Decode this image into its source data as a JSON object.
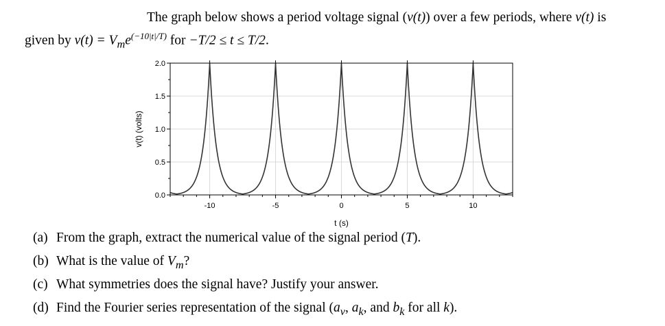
{
  "intro": {
    "line1_pre": "The graph below shows a period voltage signal (",
    "line1_v": "v(t)",
    "line1_mid": ") over a few periods, where ",
    "line1_v2": "v(t)",
    "line1_post": " is",
    "line2_pre": "given by ",
    "line2_eq": "v(t) = V",
    "line2_sub": "m",
    "line2_e": "e",
    "line2_exp": "(−10|t|/T)",
    "line2_mid": " for ",
    "line2_range": "−T/2 ≤ t ≤ T/2",
    "line2_post": "."
  },
  "chart_data": {
    "type": "line",
    "xlabel": "t (s)",
    "ylabel": "v(t) (volts)",
    "xlim": [
      -13,
      13
    ],
    "ylim": [
      0,
      2.0
    ],
    "xticks": [
      -10,
      -5,
      0,
      5,
      10
    ],
    "xtick_labels": [
      "-10",
      "-5",
      "0",
      "5",
      "10"
    ],
    "yticks": [
      0.0,
      0.5,
      1.0,
      1.5,
      2.0
    ],
    "ytick_labels": [
      "0.0",
      "0.5",
      "1.0",
      "1.5",
      "2.0"
    ],
    "grid": true,
    "period": 5,
    "peak_value": 2.0,
    "peaks_t": [
      -10,
      -5,
      0,
      5,
      10
    ],
    "series": [
      {
        "formula": "v(t) = 2 exp(-10|t - 5k|/5)",
        "x": [
          -13,
          -12.5,
          -12,
          -11.5,
          -11,
          -10.5,
          -10,
          -9.5,
          -9,
          -8.5,
          -8,
          -7.5,
          -7,
          -6.5,
          -6,
          -5.5,
          -5,
          -4.5,
          -4,
          -3.5,
          -3,
          -2.5,
          -2,
          -1.5,
          -1,
          -0.5,
          0,
          0.5,
          1,
          1.5,
          2,
          2.5,
          3,
          3.5,
          4,
          4.5,
          5,
          5.5,
          6,
          6.5,
          7,
          7.5,
          8,
          8.5,
          9,
          9.5,
          10,
          10.5,
          11,
          11.5,
          12,
          12.5,
          13
        ],
        "y": [
          0.005,
          0.013,
          0.037,
          0.1,
          0.271,
          0.736,
          2.0,
          0.736,
          0.271,
          0.1,
          0.037,
          0.013,
          0.037,
          0.1,
          0.271,
          0.736,
          2.0,
          0.736,
          0.271,
          0.1,
          0.037,
          0.013,
          0.037,
          0.1,
          0.271,
          0.736,
          2.0,
          0.736,
          0.271,
          0.1,
          0.037,
          0.013,
          0.037,
          0.1,
          0.271,
          0.736,
          2.0,
          0.736,
          0.271,
          0.1,
          0.037,
          0.013,
          0.037,
          0.1,
          0.271,
          0.736,
          2.0,
          0.736,
          0.271,
          0.1,
          0.037,
          0.013,
          0.005
        ]
      }
    ],
    "colors": {
      "line": "#333333",
      "grid": "#d9d9d9",
      "axis": "#000000"
    }
  },
  "questions": [
    {
      "tag": "(a)",
      "parts": [
        {
          "t": "From the graph, extract the numerical value of the signal period ("
        },
        {
          "t": "T",
          "m": true
        },
        {
          "t": ")."
        }
      ]
    },
    {
      "tag": "(b)",
      "parts": [
        {
          "t": "What is the value of "
        },
        {
          "t": "V",
          "m": true
        },
        {
          "t": "m",
          "m": true,
          "sub": true
        },
        {
          "t": "?"
        }
      ]
    },
    {
      "tag": "(c)",
      "parts": [
        {
          "t": "What symmetries does the signal have? Justify your answer."
        }
      ]
    },
    {
      "tag": "(d)",
      "parts": [
        {
          "t": "Find the Fourier series representation of the signal ("
        },
        {
          "t": "a",
          "m": true
        },
        {
          "t": "v",
          "m": true,
          "sub": true
        },
        {
          "t": ", "
        },
        {
          "t": "a",
          "m": true
        },
        {
          "t": "k",
          "m": true,
          "sub": true
        },
        {
          "t": ", and "
        },
        {
          "t": "b",
          "m": true
        },
        {
          "t": "k",
          "m": true,
          "sub": true
        },
        {
          "t": " for all "
        },
        {
          "t": "k",
          "m": true
        },
        {
          "t": ")."
        }
      ]
    }
  ]
}
